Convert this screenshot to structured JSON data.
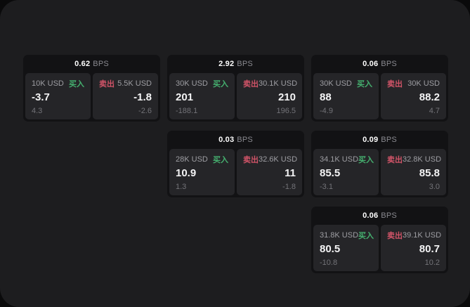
{
  "labels": {
    "buy": "买入",
    "sell": "卖出",
    "bps_suffix": "BPS"
  },
  "colors": {
    "buy": "#45b06f",
    "sell": "#d15468",
    "card_background": "#121214",
    "panel_background": "#252528",
    "dashboard_background": "#1d1d1f"
  },
  "cards": [
    {
      "bps": "0.62",
      "col": 0,
      "row": 0,
      "buy": {
        "amount": "10K USD",
        "value": "-3.7",
        "sub": "4.3"
      },
      "sell": {
        "amount": "5.5K USD",
        "value": "-1.8",
        "sub": "-2.6"
      }
    },
    {
      "bps": "2.92",
      "col": 1,
      "row": 0,
      "buy": {
        "amount": "30K USD",
        "value": "201",
        "sub": "-188.1"
      },
      "sell": {
        "amount": "30.1K USD",
        "value": "210",
        "sub": "196.5"
      }
    },
    {
      "bps": "0.06",
      "col": 2,
      "row": 0,
      "buy": {
        "amount": "30K USD",
        "value": "88",
        "sub": "-4.9"
      },
      "sell": {
        "amount": "30K USD",
        "value": "88.2",
        "sub": "4.7"
      }
    },
    {
      "bps": "0.03",
      "col": 1,
      "row": 1,
      "buy": {
        "amount": "28K USD",
        "value": "10.9",
        "sub": "1.3"
      },
      "sell": {
        "amount": "32.6K USD",
        "value": "11",
        "sub": "-1.8"
      }
    },
    {
      "bps": "0.09",
      "col": 2,
      "row": 1,
      "buy": {
        "amount": "34.1K USD",
        "value": "85.5",
        "sub": "-3.1"
      },
      "sell": {
        "amount": "32.8K USD",
        "value": "85.8",
        "sub": "3.0"
      }
    },
    {
      "bps": "0.06",
      "col": 2,
      "row": 2,
      "buy": {
        "amount": "31.8K USD",
        "value": "80.5",
        "sub": "-10.8"
      },
      "sell": {
        "amount": "39.1K USD",
        "value": "80.7",
        "sub": "10.2"
      }
    }
  ]
}
